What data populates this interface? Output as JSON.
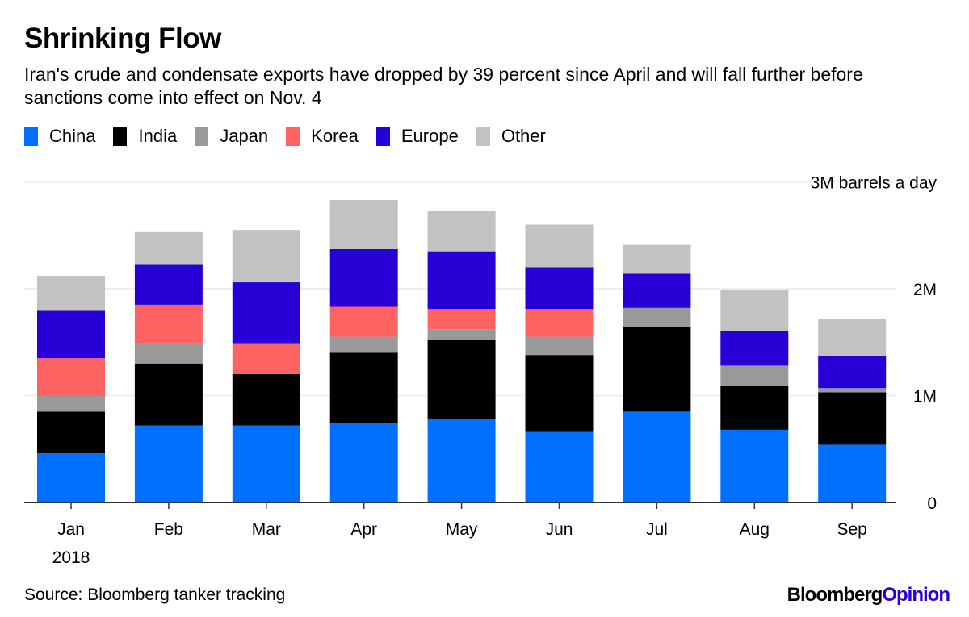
{
  "chart_data": {
    "type": "bar",
    "stacked": true,
    "title": "Shrinking Flow",
    "subtitle": "Iran's crude and condensate exports have dropped by 39 percent since April and will fall further before sanctions come into effect on Nov. 4",
    "categories": [
      "Jan",
      "Feb",
      "Mar",
      "Apr",
      "May",
      "Jun",
      "Jul",
      "Aug",
      "Sep"
    ],
    "year_label": "2018",
    "ylabel": "3M barrels a day",
    "yticks": [
      {
        "value": 0,
        "label": "0"
      },
      {
        "value": 1,
        "label": "1M"
      },
      {
        "value": 2,
        "label": "2M"
      },
      {
        "value": 3,
        "label": "3M barrels a day"
      }
    ],
    "ylim": [
      0,
      3
    ],
    "units": "million barrels a day",
    "grid": true,
    "legend_position": "top-left",
    "series": [
      {
        "name": "China",
        "color": "#0070ff",
        "values": [
          0.46,
          0.72,
          0.72,
          0.74,
          0.78,
          0.66,
          0.85,
          0.68,
          0.54
        ]
      },
      {
        "name": "India",
        "color": "#000000",
        "values": [
          0.39,
          0.58,
          0.48,
          0.66,
          0.74,
          0.72,
          0.79,
          0.41,
          0.49
        ]
      },
      {
        "name": "Japan",
        "color": "#999999",
        "values": [
          0.15,
          0.19,
          0.0,
          0.15,
          0.1,
          0.17,
          0.18,
          0.19,
          0.04
        ]
      },
      {
        "name": "Korea",
        "color": "#ff6361",
        "values": [
          0.35,
          0.36,
          0.29,
          0.28,
          0.19,
          0.26,
          0.0,
          0.0,
          0.0
        ]
      },
      {
        "name": "Europe",
        "color": "#2800d7",
        "values": [
          0.45,
          0.38,
          0.57,
          0.54,
          0.54,
          0.39,
          0.32,
          0.32,
          0.3
        ]
      },
      {
        "name": "Other",
        "color": "#c2c2c2",
        "values": [
          0.32,
          0.3,
          0.49,
          0.46,
          0.38,
          0.4,
          0.27,
          0.39,
          0.35
        ]
      }
    ],
    "source": "Source: Bloomberg tanker tracking"
  },
  "branding": {
    "part1": "Bloomberg",
    "part2": "Opinion"
  }
}
